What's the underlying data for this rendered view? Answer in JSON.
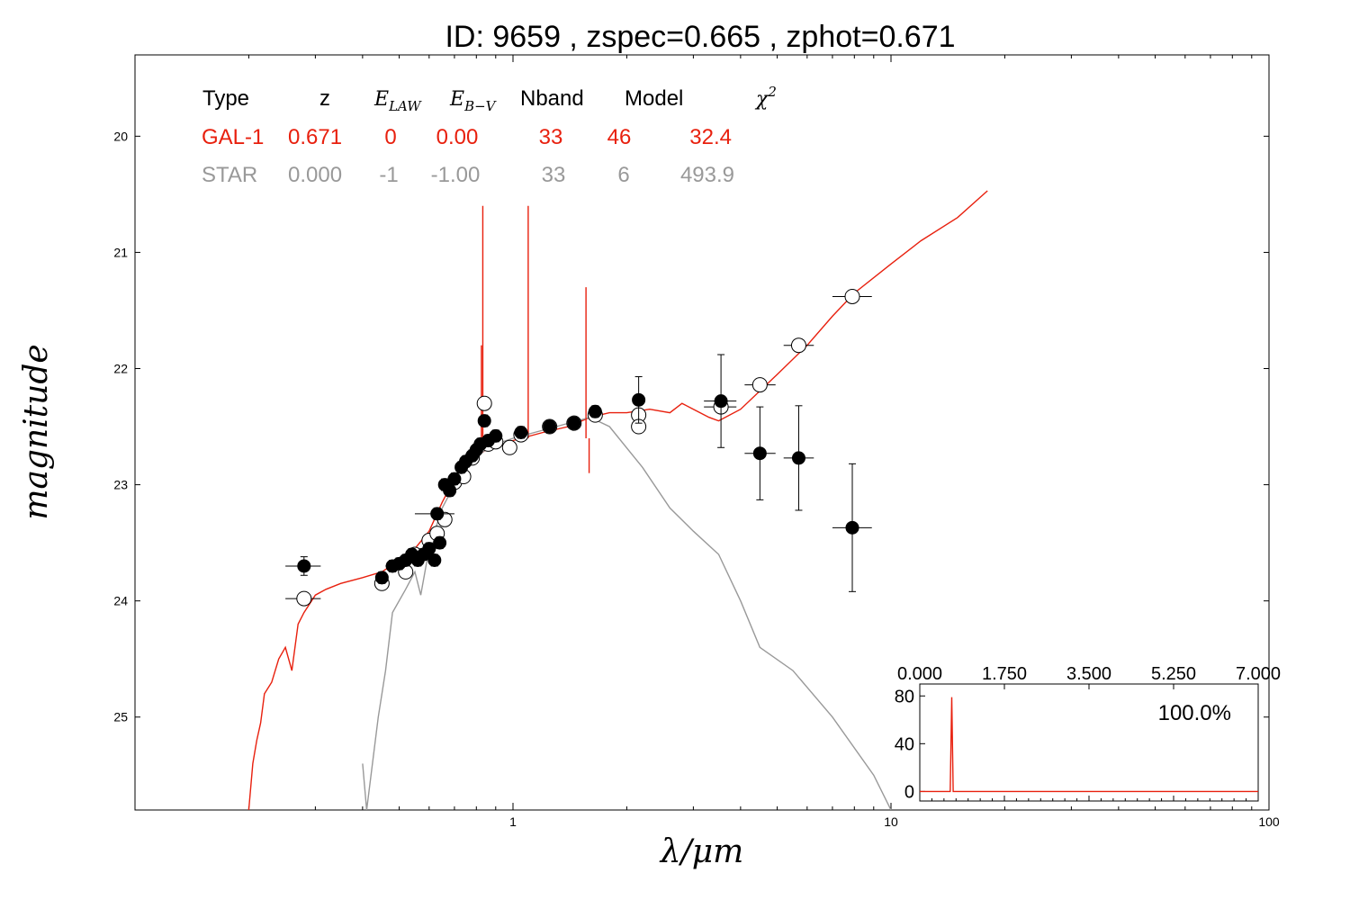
{
  "title": "ID:  9659  , zspec=0.665 , zphot=0.671",
  "table": {
    "headers": [
      "Type",
      "z",
      "E_LAW",
      "E_B-V",
      "Nband",
      "Model",
      "χ2"
    ],
    "rows": [
      {
        "name": "GAL-1",
        "values": [
          "GAL-1",
          "0.671",
          "0",
          "0.00",
          "33",
          "46",
          "32.4"
        ],
        "color": "#e8200e"
      },
      {
        "name": "STAR",
        "values": [
          "STAR",
          "0.000",
          "-1",
          "-1.00",
          "33",
          "6",
          "493.9"
        ],
        "color": "#999999"
      }
    ]
  },
  "colors": {
    "galaxy": "#e8200e",
    "star": "#999999",
    "axis": "#000000"
  },
  "chart_data": [
    {
      "type": "line",
      "xlabel": "λ/μm",
      "ylabel": "magnitude",
      "xscale": "log",
      "xlim": [
        0.1,
        100
      ],
      "ylim": [
        25.8,
        19.3
      ],
      "x_ticks": [
        1,
        10,
        100
      ],
      "x_tick_labels": [
        "1",
        "10",
        "100"
      ],
      "y_ticks": [
        20,
        21,
        22,
        23,
        24,
        25
      ],
      "y_tick_labels": [
        "20",
        "21",
        "22",
        "23",
        "24",
        "25"
      ],
      "series": [
        {
          "name": "GAL-1",
          "color": "#e8200e",
          "points": [
            [
              0.2,
              25.8
            ],
            [
              0.205,
              25.4
            ],
            [
              0.21,
              25.2
            ],
            [
              0.215,
              25.05
            ],
            [
              0.22,
              24.8
            ],
            [
              0.23,
              24.7
            ],
            [
              0.24,
              24.5
            ],
            [
              0.25,
              24.4
            ],
            [
              0.26,
              24.6
            ],
            [
              0.27,
              24.2
            ],
            [
              0.28,
              24.1
            ],
            [
              0.3,
              23.95
            ],
            [
              0.32,
              23.9
            ],
            [
              0.35,
              23.85
            ],
            [
              0.4,
              23.8
            ],
            [
              0.45,
              23.75
            ],
            [
              0.5,
              23.65
            ],
            [
              0.55,
              23.55
            ],
            [
              0.6,
              23.4
            ],
            [
              0.65,
              23.15
            ],
            [
              0.7,
              22.95
            ],
            [
              0.75,
              22.8
            ],
            [
              0.8,
              22.75
            ],
            [
              0.85,
              22.7
            ],
            [
              0.9,
              22.68
            ],
            [
              1.0,
              22.62
            ],
            [
              1.2,
              22.55
            ],
            [
              1.4,
              22.5
            ],
            [
              1.6,
              22.42
            ],
            [
              1.8,
              22.38
            ],
            [
              2.0,
              22.38
            ],
            [
              2.3,
              22.35
            ],
            [
              2.6,
              22.38
            ],
            [
              2.8,
              22.3
            ],
            [
              3.0,
              22.35
            ],
            [
              3.3,
              22.42
            ],
            [
              3.5,
              22.45
            ],
            [
              4.0,
              22.35
            ],
            [
              5.0,
              22.05
            ],
            [
              6.0,
              21.8
            ],
            [
              7.0,
              21.55
            ],
            [
              8.0,
              21.35
            ],
            [
              10.0,
              21.1
            ],
            [
              12.0,
              20.9
            ],
            [
              15.0,
              20.7
            ],
            [
              18.0,
              20.47
            ]
          ]
        },
        {
          "name": "STAR",
          "color": "#999999",
          "points": [
            [
              0.4,
              25.4
            ],
            [
              0.41,
              25.8
            ],
            [
              0.44,
              25.0
            ],
            [
              0.46,
              24.6
            ],
            [
              0.48,
              24.1
            ],
            [
              0.52,
              23.9
            ],
            [
              0.55,
              23.75
            ],
            [
              0.57,
              23.95
            ],
            [
              0.6,
              23.55
            ],
            [
              0.65,
              23.2
            ],
            [
              0.7,
              23.0
            ],
            [
              0.8,
              22.75
            ],
            [
              0.9,
              22.65
            ],
            [
              1.0,
              22.6
            ],
            [
              1.3,
              22.5
            ],
            [
              1.6,
              22.42
            ],
            [
              1.8,
              22.5
            ],
            [
              2.2,
              22.85
            ],
            [
              2.6,
              23.2
            ],
            [
              3.0,
              23.4
            ],
            [
              3.5,
              23.6
            ],
            [
              4.0,
              24.0
            ],
            [
              4.5,
              24.4
            ],
            [
              5.5,
              24.6
            ],
            [
              7.0,
              25.0
            ],
            [
              9.0,
              25.5
            ],
            [
              10.0,
              25.8
            ]
          ]
        }
      ],
      "spikes": [
        {
          "x": 0.832,
          "y": 20.6
        },
        {
          "x": 0.825,
          "y": 21.8
        },
        {
          "x": 1.097,
          "y": 20.6
        },
        {
          "x": 1.56,
          "y": 21.3
        },
        {
          "x": 1.59,
          "y": 22.9
        }
      ],
      "observed_points": [
        {
          "x": 0.28,
          "y": 23.7,
          "xerr": [
            0.25,
            0.31
          ],
          "yerr": 0.08
        },
        {
          "x": 0.45,
          "y": 23.8,
          "xerr": [
            0.44,
            0.46
          ],
          "yerr": 0.05
        },
        {
          "x": 0.48,
          "y": 23.7,
          "xerr": [
            0.46,
            0.5
          ],
          "yerr": 0.05
        },
        {
          "x": 0.5,
          "y": 23.68,
          "xerr": [
            0.48,
            0.52
          ],
          "yerr": 0.05
        },
        {
          "x": 0.52,
          "y": 23.65,
          "xerr": [
            0.5,
            0.54
          ],
          "yerr": 0.05
        },
        {
          "x": 0.54,
          "y": 23.6,
          "xerr": [
            0.52,
            0.56
          ],
          "yerr": 0.05
        },
        {
          "x": 0.56,
          "y": 23.65,
          "xerr": [
            0.54,
            0.58
          ],
          "yerr": 0.05
        },
        {
          "x": 0.58,
          "y": 23.6,
          "xerr": [
            0.56,
            0.6
          ],
          "yerr": 0.05
        },
        {
          "x": 0.6,
          "y": 23.55,
          "xerr": [
            0.58,
            0.62
          ],
          "yerr": 0.05
        },
        {
          "x": 0.62,
          "y": 23.65,
          "xerr": [
            0.61,
            0.63
          ],
          "yerr": 0.05
        },
        {
          "x": 0.64,
          "y": 23.5,
          "xerr": [
            0.63,
            0.65
          ],
          "yerr": 0.05
        },
        {
          "x": 0.63,
          "y": 23.25,
          "xerr": [
            0.55,
            0.7
          ],
          "yerr": 0.05
        },
        {
          "x": 0.66,
          "y": 23.0,
          "xerr": [
            0.65,
            0.67
          ],
          "yerr": 0.05
        },
        {
          "x": 0.68,
          "y": 23.05,
          "xerr": [
            0.67,
            0.69
          ],
          "yerr": 0.05
        },
        {
          "x": 0.7,
          "y": 22.95,
          "xerr": [
            0.69,
            0.72
          ],
          "yerr": 0.05
        },
        {
          "x": 0.73,
          "y": 22.85,
          "xerr": [
            0.72,
            0.74
          ],
          "yerr": 0.05
        },
        {
          "x": 0.75,
          "y": 22.8,
          "xerr": [
            0.74,
            0.77
          ],
          "yerr": 0.05
        },
        {
          "x": 0.78,
          "y": 22.75,
          "xerr": [
            0.76,
            0.8
          ],
          "yerr": 0.05
        },
        {
          "x": 0.8,
          "y": 22.7,
          "xerr": [
            0.78,
            0.82
          ],
          "yerr": 0.05
        },
        {
          "x": 0.82,
          "y": 22.65,
          "xerr": [
            0.8,
            0.84
          ],
          "yerr": 0.05
        },
        {
          "x": 0.84,
          "y": 22.45,
          "xerr": [
            0.83,
            0.85
          ],
          "yerr": 0.05
        },
        {
          "x": 0.86,
          "y": 22.62,
          "xerr": [
            0.84,
            0.88
          ],
          "yerr": 0.05
        },
        {
          "x": 0.9,
          "y": 22.58,
          "xerr": [
            0.88,
            0.92
          ],
          "yerr": 0.05
        },
        {
          "x": 1.05,
          "y": 22.55,
          "xerr": [
            1.02,
            1.08
          ],
          "yerr": 0.05
        },
        {
          "x": 1.25,
          "y": 22.5,
          "xerr": [
            1.2,
            1.3
          ],
          "yerr": 0.05
        },
        {
          "x": 1.45,
          "y": 22.47,
          "xerr": [
            1.4,
            1.5
          ],
          "yerr": 0.05
        },
        {
          "x": 1.65,
          "y": 22.37,
          "xerr": [
            1.58,
            1.72
          ],
          "yerr": 0.05
        },
        {
          "x": 2.15,
          "y": 22.27,
          "xerr": [
            2.1,
            2.2
          ],
          "yerr": 0.2
        },
        {
          "x": 3.55,
          "y": 22.28,
          "xerr": [
            3.2,
            3.9
          ],
          "yerr": 0.4
        },
        {
          "x": 4.5,
          "y": 22.73,
          "xerr": [
            4.1,
            4.95
          ],
          "yerr": 0.4
        },
        {
          "x": 5.7,
          "y": 22.77,
          "xerr": [
            5.2,
            6.25
          ],
          "yerr": 0.45
        },
        {
          "x": 7.9,
          "y": 23.37,
          "xerr": [
            7.0,
            8.9
          ],
          "yerr": 0.55
        }
      ],
      "model_points": [
        {
          "x": 0.28,
          "y": 23.98,
          "xerr": [
            0.25,
            0.31
          ]
        },
        {
          "x": 0.45,
          "y": 23.85,
          "xerr": [
            0.44,
            0.46
          ]
        },
        {
          "x": 0.52,
          "y": 23.75,
          "xerr": [
            0.5,
            0.54
          ]
        },
        {
          "x": 0.55,
          "y": 23.6,
          "xerr": [
            0.53,
            0.57
          ]
        },
        {
          "x": 0.6,
          "y": 23.48,
          "xerr": [
            0.58,
            0.62
          ]
        },
        {
          "x": 0.63,
          "y": 23.42,
          "xerr": [
            0.61,
            0.65
          ]
        },
        {
          "x": 0.66,
          "y": 23.3,
          "xerr": [
            0.64,
            0.68
          ]
        },
        {
          "x": 0.7,
          "y": 22.98,
          "xerr": [
            0.68,
            0.72
          ]
        },
        {
          "x": 0.74,
          "y": 22.93,
          "xerr": [
            0.72,
            0.76
          ]
        },
        {
          "x": 0.78,
          "y": 22.77,
          "xerr": [
            0.76,
            0.8
          ]
        },
        {
          "x": 0.84,
          "y": 22.3,
          "xerr": [
            0.82,
            0.86
          ]
        },
        {
          "x": 0.86,
          "y": 22.65,
          "xerr": [
            0.84,
            0.88
          ]
        },
        {
          "x": 0.9,
          "y": 22.63,
          "xerr": [
            0.88,
            0.92
          ]
        },
        {
          "x": 0.98,
          "y": 22.68,
          "xerr": [
            0.95,
            1.02
          ]
        },
        {
          "x": 1.05,
          "y": 22.57,
          "xerr": [
            1.02,
            1.08
          ]
        },
        {
          "x": 1.25,
          "y": 22.5,
          "xerr": [
            1.2,
            1.3
          ]
        },
        {
          "x": 1.45,
          "y": 22.47,
          "xerr": [
            1.4,
            1.5
          ]
        },
        {
          "x": 1.65,
          "y": 22.4,
          "xerr": [
            1.58,
            1.72
          ]
        },
        {
          "x": 2.15,
          "y": 22.4,
          "xerr": [
            2.1,
            2.2
          ]
        },
        {
          "x": 2.15,
          "y": 22.5,
          "xerr": [
            2.1,
            2.2
          ]
        },
        {
          "x": 3.55,
          "y": 22.33,
          "xerr": [
            3.2,
            3.9
          ]
        },
        {
          "x": 4.5,
          "y": 22.14,
          "xerr": [
            4.1,
            4.95
          ]
        },
        {
          "x": 5.7,
          "y": 21.8,
          "xerr": [
            5.2,
            6.25
          ]
        },
        {
          "x": 7.9,
          "y": 21.38,
          "xerr": [
            7.0,
            8.9
          ]
        }
      ]
    },
    {
      "type": "line",
      "title": "",
      "xlim": [
        0,
        7
      ],
      "ylim": [
        -8,
        90
      ],
      "x_tick_labels": [
        "0.000",
        "1.750",
        "3.500",
        "5.250",
        "7.000"
      ],
      "x_ticks": [
        0,
        1.75,
        3.5,
        5.25,
        7
      ],
      "y_tick_labels": [
        "0",
        "40",
        "80"
      ],
      "y_ticks": [
        0,
        40,
        80
      ],
      "annotation": "100.0%",
      "series": [
        {
          "color": "#e8200e",
          "points": [
            [
              0.0,
              0
            ],
            [
              0.63,
              0
            ],
            [
              0.66,
              79
            ],
            [
              0.69,
              0
            ],
            [
              7.0,
              0
            ]
          ]
        }
      ]
    }
  ]
}
